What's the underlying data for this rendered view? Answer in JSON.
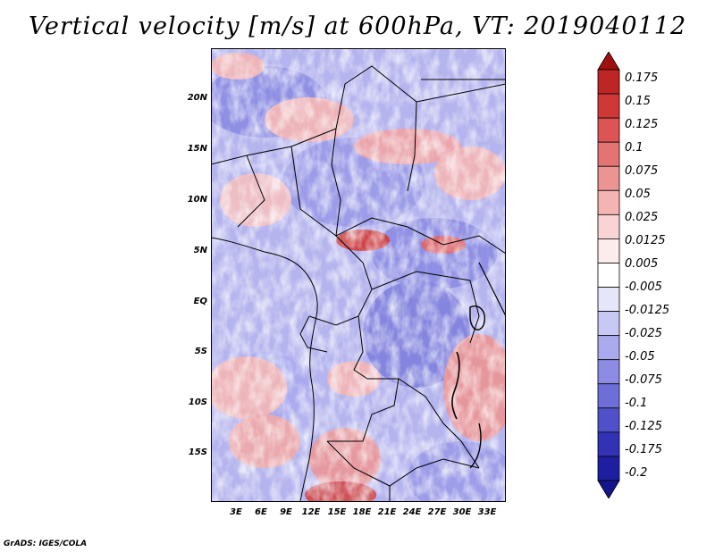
{
  "title": "Vertical velocity [m/s] at 600hPa, VT: 2019040112",
  "footer": "GrADS: IGES/COLA",
  "map": {
    "lat_labels": [
      "20N",
      "15N",
      "10N",
      "5N",
      "EQ",
      "5S",
      "10S",
      "15S"
    ],
    "lon_labels": [
      "3E",
      "6E",
      "9E",
      "12E",
      "15E",
      "18E",
      "21E",
      "24E",
      "27E",
      "30E",
      "33E"
    ]
  },
  "colorbar": {
    "labels": [
      "0.175",
      "0.15",
      "0.125",
      "0.1",
      "0.075",
      "0.05",
      "0.025",
      "0.0125",
      "0.005",
      "-0.005",
      "-0.0125",
      "-0.025",
      "-0.05",
      "-0.075",
      "-0.1",
      "-0.125",
      "-0.175",
      "-0.2"
    ],
    "colors": [
      "#a01010",
      "#be2626",
      "#d03838",
      "#dc5454",
      "#e47474",
      "#ec9494",
      "#f4b4b4",
      "#fad4d4",
      "#fdecec",
      "#ffffff",
      "#e6e6fa",
      "#c8c8f4",
      "#aaaaee",
      "#8c8ce4",
      "#6e6ed8",
      "#5050c8",
      "#3232b4",
      "#1e1ea0",
      "#14148c"
    ]
  },
  "chart_data": {
    "type": "heatmap",
    "title": "Vertical velocity [m/s] at 600hPa, VT: 2019040112",
    "variable": "Vertical velocity",
    "units": "m/s",
    "level": "600hPa",
    "valid_time": "2019040112",
    "lon_range": [
      0,
      35
    ],
    "lat_range": [
      -20,
      24
    ],
    "lat_ticks": [
      20,
      15,
      10,
      5,
      0,
      -5,
      -10,
      -15
    ],
    "lon_ticks": [
      3,
      6,
      9,
      12,
      15,
      18,
      21,
      24,
      27,
      30,
      33
    ],
    "contour_levels": [
      0.175,
      0.15,
      0.125,
      0.1,
      0.075,
      0.05,
      0.025,
      0.0125,
      0.005,
      -0.005,
      -0.0125,
      -0.025,
      -0.05,
      -0.075,
      -0.1,
      -0.125,
      -0.175,
      -0.2
    ]
  }
}
